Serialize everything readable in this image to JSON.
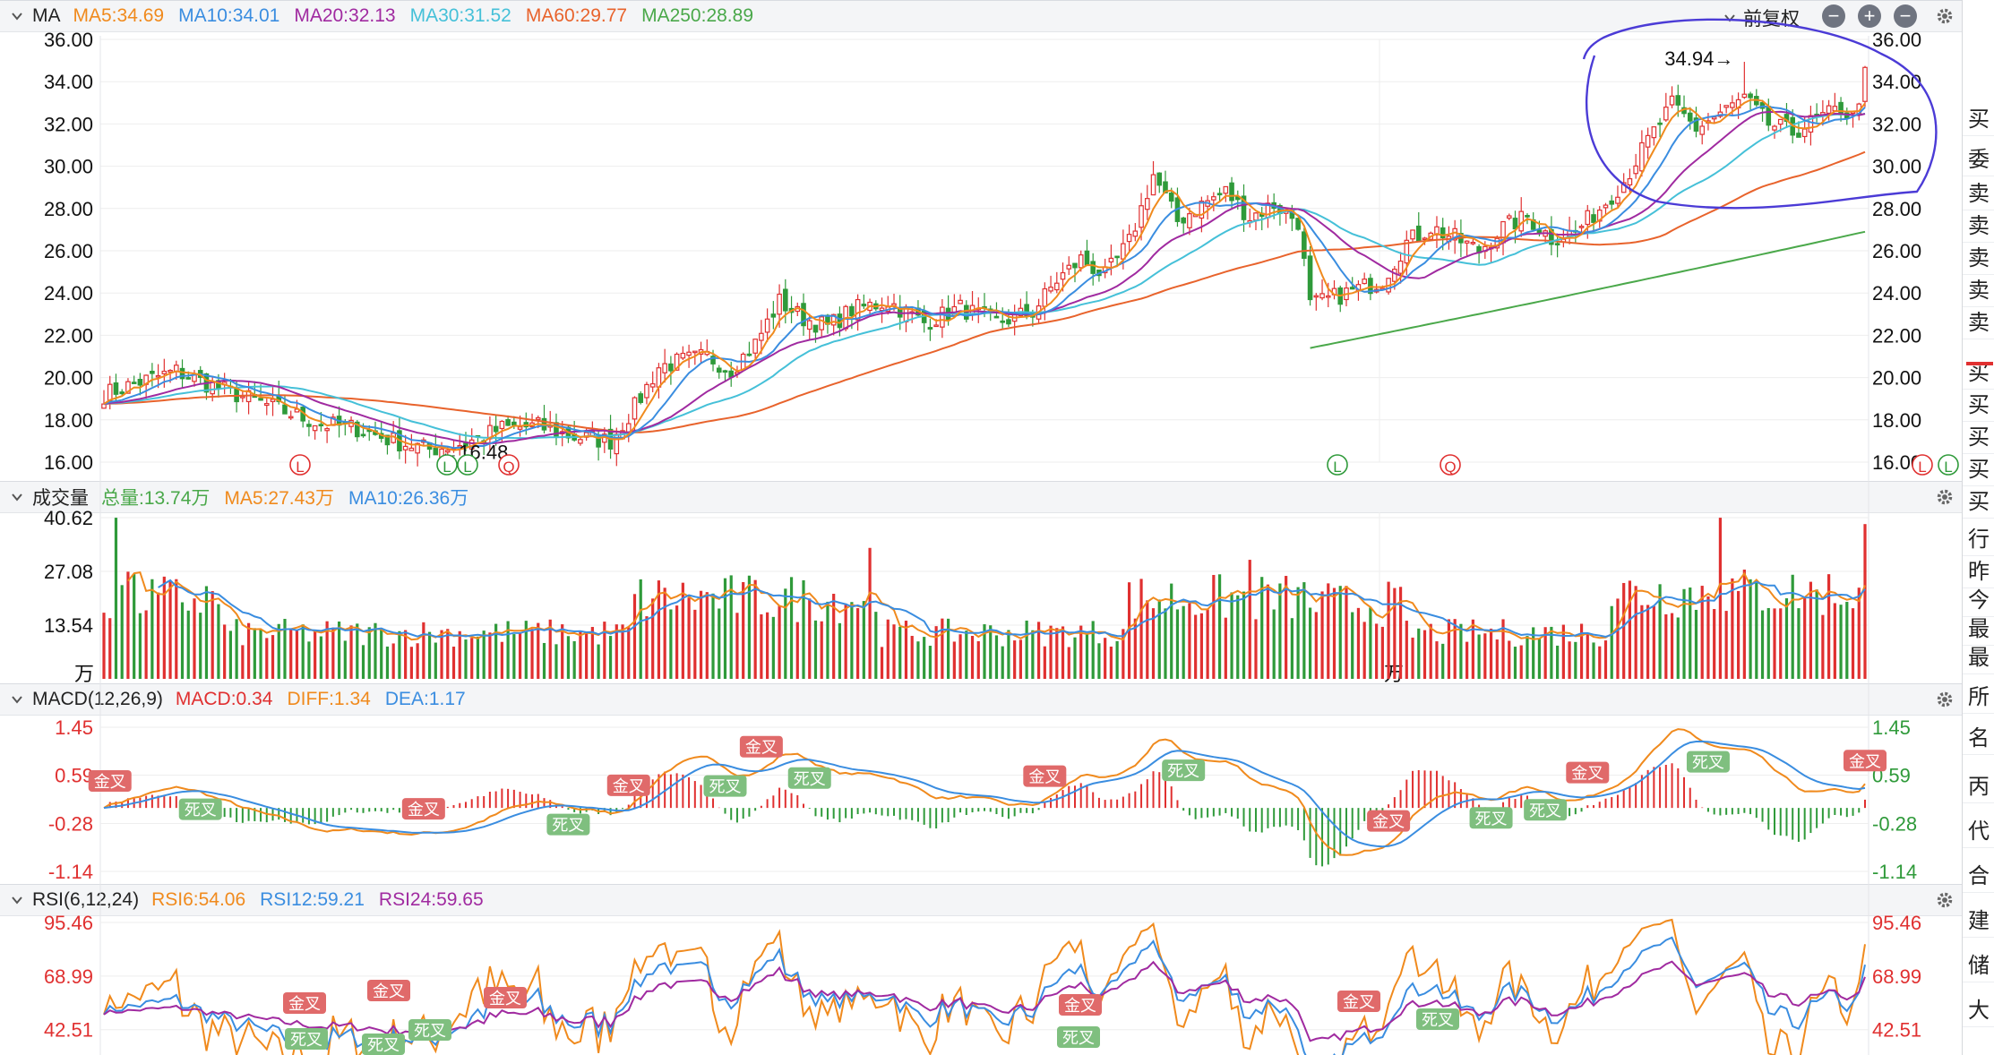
{
  "panels": {
    "main": {
      "name": "MA",
      "ma_labels": [
        {
          "text": "MA5:34.69",
          "color": "#f08a1d"
        },
        {
          "text": "MA10:34.01",
          "color": "#3a8de0"
        },
        {
          "text": "MA20:32.13",
          "color": "#a02aa0"
        },
        {
          "text": "MA30:31.52",
          "color": "#45c0d8"
        },
        {
          "text": "MA60:29.77",
          "color": "#e8632c"
        },
        {
          "text": "MA250:28.89",
          "color": "#4aa84a"
        }
      ],
      "adjust_label": "前复权",
      "high_label": "34.94→",
      "low_label": "←16.48",
      "y_ticks": [
        "36.00",
        "34.00",
        "32.00",
        "30.00",
        "28.00",
        "26.00",
        "24.00",
        "22.00",
        "20.00",
        "18.00",
        "16.00"
      ]
    },
    "volume": {
      "name": "成交量",
      "labels": [
        {
          "text": "总量:13.74万",
          "color": "#4aa84a"
        },
        {
          "text": "MA5:27.43万",
          "color": "#f08a1d"
        },
        {
          "text": "MA10:26.36万",
          "color": "#3a8de0"
        }
      ],
      "y_ticks": [
        "40.62",
        "27.08",
        "13.54"
      ],
      "unit": "万"
    },
    "macd": {
      "name": "MACD(12,26,9)",
      "labels": [
        {
          "text": "MACD:0.34",
          "color": "#e03030"
        },
        {
          "text": "DIFF:1.34",
          "color": "#f08a1d"
        },
        {
          "text": "DEA:1.17",
          "color": "#3a8de0"
        }
      ],
      "y_ticks": [
        "1.45",
        "0.59",
        "-0.28",
        "-1.14"
      ],
      "golden": "金叉",
      "death": "死叉"
    },
    "rsi": {
      "name": "RSI(6,12,24)",
      "labels": [
        {
          "text": "RSI6:54.06",
          "color": "#f08a1d"
        },
        {
          "text": "RSI12:59.21",
          "color": "#3a8de0"
        },
        {
          "text": "RSI24:59.65",
          "color": "#a02aa0"
        }
      ],
      "y_ticks": [
        "95.46",
        "68.99",
        "42.51"
      ]
    }
  },
  "markers": {
    "L": "L",
    "Q": "Q"
  },
  "side_panel": [
    "买",
    "委",
    "卖",
    "卖",
    "卖",
    "卖",
    "卖",
    "买",
    "买",
    "买",
    "买",
    "买",
    "行",
    "昨",
    "今",
    "最",
    "最",
    "所",
    "名",
    "丙",
    "代",
    "合",
    "建",
    "储",
    "大"
  ],
  "colors": {
    "up": "#e03030",
    "down": "#2f9a3a",
    "ma5": "#f08a1d",
    "ma10": "#3a8de0",
    "ma20": "#a02aa0",
    "ma30": "#45c0d8",
    "ma60": "#e8632c",
    "ma250": "#4aa84a",
    "annotation": "#4b3bd6"
  },
  "chart_data": {
    "type": "candlestick",
    "y_range": [
      16,
      36
    ],
    "price_anchors": [
      [
        0,
        19.2
      ],
      [
        6,
        19.8
      ],
      [
        12,
        20.3
      ],
      [
        18,
        19.6
      ],
      [
        24,
        19.0
      ],
      [
        30,
        18.4
      ],
      [
        36,
        17.8
      ],
      [
        42,
        17.6
      ],
      [
        48,
        17.0
      ],
      [
        54,
        16.6
      ],
      [
        60,
        16.9
      ],
      [
        66,
        17.6
      ],
      [
        72,
        17.7
      ],
      [
        78,
        17.2
      ],
      [
        84,
        17.0
      ],
      [
        88,
        18.6
      ],
      [
        92,
        20.5
      ],
      [
        96,
        20.8
      ],
      [
        100,
        21.0
      ],
      [
        104,
        20.4
      ],
      [
        108,
        21.6
      ],
      [
        112,
        23.6
      ],
      [
        116,
        22.8
      ],
      [
        120,
        22.4
      ],
      [
        124,
        23.2
      ],
      [
        130,
        23.6
      ],
      [
        136,
        22.6
      ],
      [
        142,
        23.3
      ],
      [
        148,
        22.6
      ],
      [
        154,
        23.1
      ],
      [
        158,
        24.6
      ],
      [
        162,
        25.6
      ],
      [
        166,
        24.8
      ],
      [
        170,
        26.4
      ],
      [
        174,
        29.6
      ],
      [
        178,
        27.4
      ],
      [
        182,
        28.2
      ],
      [
        186,
        28.8
      ],
      [
        190,
        27.6
      ],
      [
        194,
        28.2
      ],
      [
        198,
        27.4
      ],
      [
        200,
        23.4
      ],
      [
        204,
        23.8
      ],
      [
        208,
        24.2
      ],
      [
        212,
        24.6
      ],
      [
        216,
        26.4
      ],
      [
        220,
        27.1
      ],
      [
        224,
        26.6
      ],
      [
        228,
        26.0
      ],
      [
        232,
        27.1
      ],
      [
        236,
        27.6
      ],
      [
        240,
        26.6
      ],
      [
        244,
        26.9
      ],
      [
        248,
        28.0
      ],
      [
        252,
        29.3
      ],
      [
        256,
        31.2
      ],
      [
        260,
        32.9
      ],
      [
        264,
        31.8
      ],
      [
        268,
        32.5
      ],
      [
        272,
        33.2
      ],
      [
        276,
        32.0
      ],
      [
        280,
        31.6
      ],
      [
        284,
        32.2
      ],
      [
        288,
        32.7
      ],
      [
        290,
        32.3
      ],
      [
        292,
        34.3
      ]
    ],
    "high_marker": {
      "index": 272,
      "value": 34.94
    },
    "low_marker": {
      "index": 55,
      "value": 16.48
    },
    "volume_y_range": [
      0,
      40.62
    ],
    "macd_y_range": [
      -1.14,
      1.45
    ],
    "rsi_y_range": [
      30,
      95.46
    ],
    "latest": {
      "ma5": 34.69,
      "ma10": 34.01,
      "ma20": 32.13,
      "ma30": 31.52,
      "ma60": 29.77,
      "ma250": 28.89,
      "volume_total_wan": 13.74,
      "vol_ma5_wan": 27.43,
      "vol_ma10_wan": 26.36,
      "macd": 0.34,
      "diff": 1.34,
      "dea": 1.17,
      "rsi6": 54.06,
      "rsi12": 59.21,
      "rsi24": 59.65
    }
  }
}
